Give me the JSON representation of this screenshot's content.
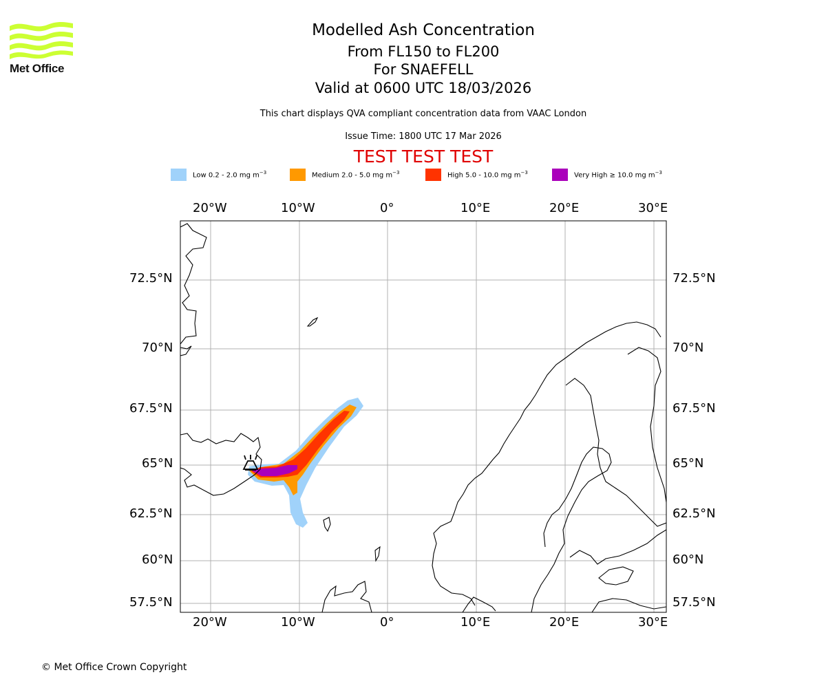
{
  "logo": {
    "text": "Met Office",
    "icon": "met-office-waves-logo",
    "color": "#ccff33"
  },
  "title": {
    "line1": "Modelled Ash Concentration",
    "line2": "From FL150 to FL200",
    "line3": "For SNAEFELL",
    "line4": "Valid at 0600 UTC 18/03/2026"
  },
  "subtitle": "This chart displays QVA compliant concentration data from VAAC London",
  "issue_time": "Issue Time: 1800 UTC 17 Mar 2026",
  "test_banner": "TEST TEST TEST",
  "legend": [
    {
      "label": "Low 0.2 - 2.0 mg m",
      "exp": "−3",
      "color": "#a0d2fa"
    },
    {
      "label": "Medium 2.0 - 5.0 mg m",
      "exp": "−3",
      "color": "#ff9900"
    },
    {
      "label": "High 5.0 - 10.0 mg m",
      "exp": "−3",
      "color": "#ff3300"
    },
    {
      "label": "Very High  ≥  10.0 mg m",
      "exp": "−3",
      "color": "#aa00bb"
    }
  ],
  "map": {
    "lon_labels": [
      "20°W",
      "10°W",
      "0°",
      "10°E",
      "20°E",
      "30°E"
    ],
    "lat_labels": [
      "72.5°N",
      "70°N",
      "67.5°N",
      "65°N",
      "62.5°N",
      "60°N",
      "57.5°N"
    ],
    "source_marker": "volcano-icon",
    "grid": true
  },
  "copyright": "© Met Office Crown Copyright"
}
